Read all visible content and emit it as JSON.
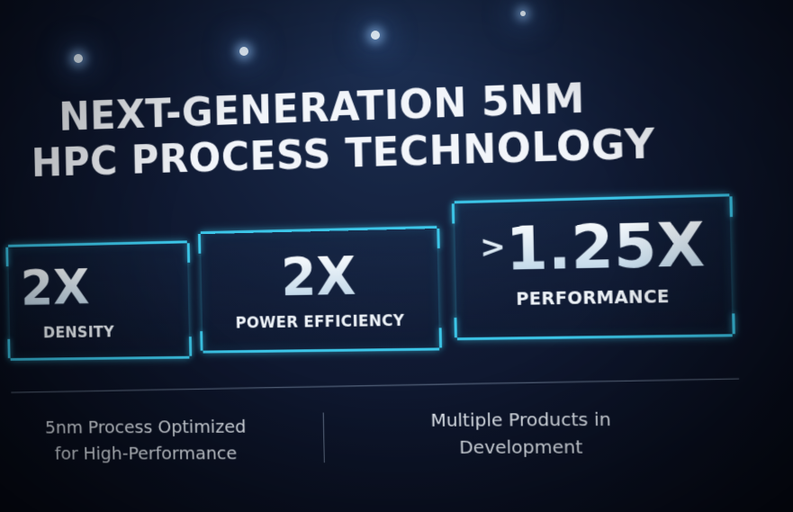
{
  "slide": {
    "title_line1": "NEXT-GENERATION 5NM",
    "title_line2": "HPC PROCESS TECHNOLOGY",
    "stats": [
      {
        "value": "2X",
        "label": "DENSITY"
      },
      {
        "value": "2X",
        "label": "POWER EFFICIENCY"
      },
      {
        "prefix": ">",
        "value": "1.25X",
        "label": "PERFORMANCE"
      }
    ],
    "notes": [
      {
        "line1": "5nm Process Optimized",
        "line2": "for High-Performance"
      },
      {
        "line1": "Multiple Products in",
        "line2": "Development"
      }
    ]
  },
  "colors": {
    "accent": "#3cc6e8",
    "background": "#0b1020",
    "text": "#f2f5fa"
  }
}
